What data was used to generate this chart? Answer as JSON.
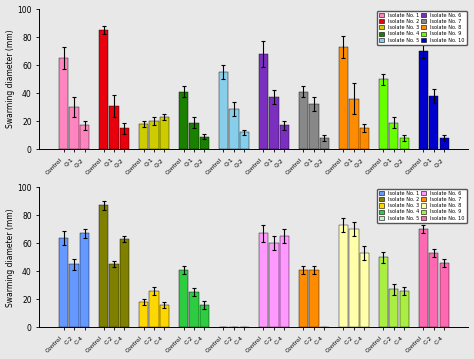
{
  "top_chart": {
    "xlabel_groups": [
      "Control",
      "Q-1",
      "Q-2"
    ],
    "isolates": [
      "Isolate No. 1",
      "Isolate No. 2",
      "Isolate No. 3",
      "Isolate No. 4",
      "Isolate No. 5",
      "Isolate No. 6",
      "Isolate No. 7",
      "Isolate No. 8",
      "Isolate No. 9",
      "Isolate No. 10"
    ],
    "colors": [
      "#FF85C0",
      "#E8000D",
      "#CCCC00",
      "#1A8000",
      "#87CEEB",
      "#7B2FBE",
      "#888888",
      "#FF8C00",
      "#66FF00",
      "#0000CC"
    ],
    "values": [
      [
        65,
        30,
        17
      ],
      [
        85,
        31,
        15
      ],
      [
        18,
        20,
        23
      ],
      [
        41,
        19,
        9
      ],
      [
        55,
        29,
        12
      ],
      [
        68,
        37,
        17
      ],
      [
        41,
        32,
        8
      ],
      [
        73,
        36,
        15
      ],
      [
        50,
        19,
        8
      ],
      [
        70,
        38,
        8
      ]
    ],
    "errors": [
      [
        8,
        7,
        3
      ],
      [
        3,
        8,
        4
      ],
      [
        2,
        3,
        2
      ],
      [
        4,
        4,
        2
      ],
      [
        5,
        5,
        2
      ],
      [
        9,
        5,
        3
      ],
      [
        4,
        5,
        2
      ],
      [
        8,
        11,
        3
      ],
      [
        4,
        4,
        2
      ],
      [
        5,
        5,
        2
      ]
    ]
  },
  "bottom_chart": {
    "xlabel_groups": [
      "Control",
      "C-2",
      "C-4"
    ],
    "isolates": [
      "Isolate No. 1",
      "Isolate No. 2",
      "Isolate No. 3",
      "Isolate No. 4",
      "Isolate No. 5",
      "Isolate No. 6",
      "Isolate No. 7",
      "Isolate No. 8",
      "Isolate No. 9",
      "Isolate No. 10"
    ],
    "colors": [
      "#6699FF",
      "#808000",
      "#FFD700",
      "#2ECC40",
      "#CCEECC",
      "#FF99FF",
      "#FF8C00",
      "#FFFFAA",
      "#AAEE44",
      "#FF69B4"
    ],
    "values": [
      [
        64,
        45,
        67
      ],
      [
        87,
        45,
        63
      ],
      [
        18,
        26,
        16
      ],
      [
        41,
        25,
        16
      ],
      [
        0,
        0,
        0
      ],
      [
        67,
        60,
        65
      ],
      [
        41,
        41,
        0
      ],
      [
        73,
        70,
        53
      ],
      [
        50,
        27,
        26
      ],
      [
        70,
        53,
        46
      ]
    ],
    "errors": [
      [
        5,
        4,
        3
      ],
      [
        3,
        2,
        2
      ],
      [
        2,
        3,
        2
      ],
      [
        3,
        3,
        3
      ],
      [
        0,
        0,
        0
      ],
      [
        6,
        5,
        5
      ],
      [
        3,
        3,
        0
      ],
      [
        5,
        5,
        5
      ],
      [
        4,
        4,
        3
      ],
      [
        3,
        3,
        3
      ]
    ]
  },
  "ylabel": "Swarming diameter (mm)",
  "ylim": [
    0,
    100
  ],
  "yticks": [
    0,
    20,
    40,
    60,
    80,
    100
  ],
  "bg_color": "#E8E8E8"
}
